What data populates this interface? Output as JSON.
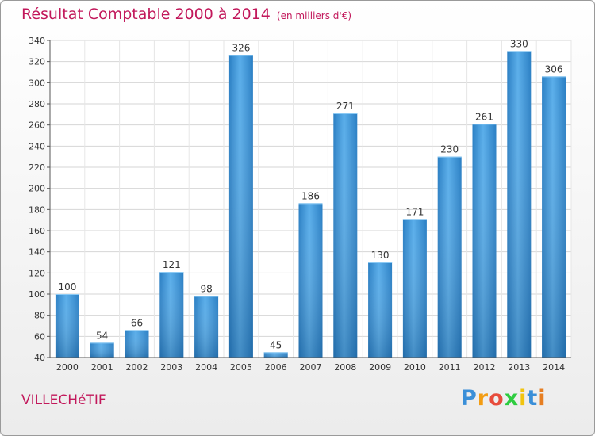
{
  "chart_data": {
    "type": "bar",
    "title": "Résultat Comptable 2000 à 2014",
    "subtitle": "(en milliers d'€)",
    "categories": [
      "2000",
      "2001",
      "2002",
      "2003",
      "2004",
      "2005",
      "2006",
      "2007",
      "2008",
      "2009",
      "2010",
      "2011",
      "2012",
      "2013",
      "2014"
    ],
    "values": [
      100,
      54,
      66,
      121,
      98,
      326,
      45,
      186,
      271,
      130,
      171,
      230,
      261,
      330,
      306
    ],
    "yticks": [
      40,
      60,
      80,
      100,
      120,
      140,
      160,
      180,
      200,
      220,
      240,
      260,
      280,
      300,
      320,
      340
    ],
    "ylim": [
      40,
      340
    ],
    "grid": true,
    "bar_color": "#3a93d6"
  },
  "footer": {
    "place": "VILLECHéTIF",
    "logo_parts": [
      "P",
      "r",
      "o",
      "x",
      "i",
      "t",
      "i"
    ],
    "logo_colors": [
      "#3a8fd8",
      "#f39c12",
      "#e74c3c",
      "#2ecc40",
      "#f1c40f",
      "#3a8fd8",
      "#e67e22"
    ]
  }
}
